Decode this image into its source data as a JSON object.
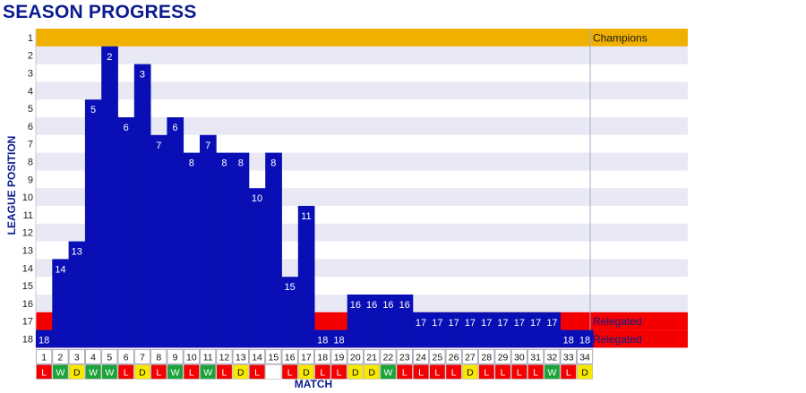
{
  "title": "SEASON PROGRESS",
  "chart_data": {
    "type": "bar",
    "title": "SEASON PROGRESS",
    "xlabel": "MATCH",
    "ylabel": "LEAGUE POSITION",
    "y_inverted": true,
    "ylim": [
      1,
      18
    ],
    "y_ticks": [
      "1",
      "2",
      "3",
      "4",
      "5",
      "6",
      "7",
      "8",
      "9",
      "10",
      "11",
      "12",
      "13",
      "14",
      "15",
      "16",
      "17",
      "18"
    ],
    "categories": [
      "1",
      "2",
      "3",
      "4",
      "5",
      "6",
      "7",
      "8",
      "9",
      "10",
      "11",
      "12",
      "13",
      "14",
      "15",
      "16",
      "17",
      "18",
      "19",
      "20",
      "21",
      "22",
      "23",
      "24",
      "25",
      "26",
      "27",
      "28",
      "29",
      "30",
      "31",
      "32",
      "33",
      "34"
    ],
    "values": [
      18,
      14,
      13,
      5,
      2,
      6,
      3,
      7,
      6,
      8,
      7,
      8,
      8,
      10,
      8,
      15,
      11,
      18,
      18,
      16,
      16,
      16,
      16,
      17,
      17,
      17,
      17,
      17,
      17,
      17,
      17,
      17,
      18,
      18
    ],
    "results": [
      "L",
      "W",
      "D",
      "W",
      "W",
      "L",
      "D",
      "L",
      "W",
      "L",
      "W",
      "L",
      "D",
      "L",
      "",
      "L",
      "D",
      "L",
      "L",
      "D",
      "D",
      "W",
      "L",
      "L",
      "L",
      "L",
      "D",
      "L",
      "L",
      "L",
      "L",
      "W",
      "L",
      "D"
    ],
    "zones": [
      {
        "label": "Champions",
        "positions": [
          1
        ],
        "color": "#f0b000"
      },
      {
        "label": "Relegated",
        "positions": [
          17
        ],
        "color": "#f40000"
      },
      {
        "label": "Relegated",
        "positions": [
          18
        ],
        "color": "#f40000"
      }
    ],
    "colors": {
      "bar": "#0a0fb5",
      "stripe": "#e9e9f5",
      "win": "#1ca33a",
      "draw": "#f8e800",
      "loss": "#f40000",
      "text_dark": "#0b1b8f"
    }
  }
}
